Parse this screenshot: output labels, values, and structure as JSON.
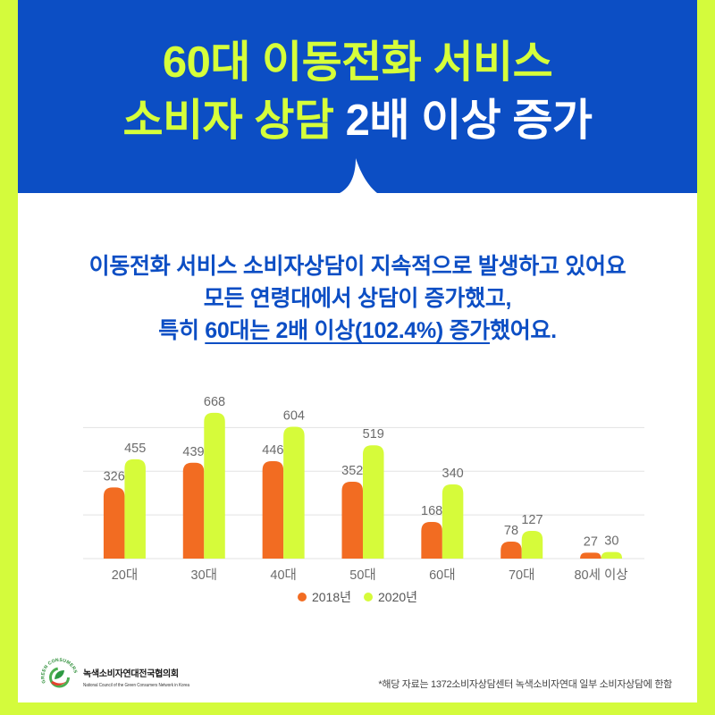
{
  "colors": {
    "frame": "#d4fb3c",
    "header_bg": "#0c4ec4",
    "title_highlight": "#d6ff3a",
    "title_white": "#ffffff",
    "body_text": "#0c4ec4",
    "label_gray": "#6b6b6b"
  },
  "header": {
    "title_line1": "60대 이동전화 서비스",
    "title_line2_highlight": "소비자 상담",
    "title_line2_rest": "2배 이상 증가"
  },
  "summary": {
    "line1": "이동전화 서비스 소비자상담이 지속적으로 발생하고 있어요",
    "line2": "모든 연령대에서 상담이 증가했고,",
    "line3_prefix": "특히 ",
    "line3_emphasis": "60대는 2배 이상(102.4%) 증가",
    "line3_suffix": "했어요."
  },
  "chart_data": {
    "type": "bar",
    "categories": [
      "20대",
      "30대",
      "40대",
      "50대",
      "60대",
      "70대",
      "80세 이상"
    ],
    "series": [
      {
        "name": "2018년",
        "values": [
          326,
          439,
          446,
          352,
          168,
          78,
          27
        ],
        "color": "#f26c22"
      },
      {
        "name": "2020년",
        "values": [
          455,
          668,
          604,
          519,
          340,
          127,
          30
        ],
        "color": "#d6fb3a"
      }
    ],
    "ylim": [
      0,
      700
    ],
    "grid": true,
    "grid_values": [
      0,
      200,
      400,
      600
    ],
    "data_labels": true,
    "legend": "bottom"
  },
  "footer": {
    "logo_text": "GREEN CONSUMERS",
    "org_name": "녹색소비자연대전국협의회",
    "org_name_en": "National Council of the Green Consumers Network in Korea",
    "note": "*해당 자료는 1372소비자상담센터 녹색소비자연대 일부 소비자상담에 한함"
  }
}
